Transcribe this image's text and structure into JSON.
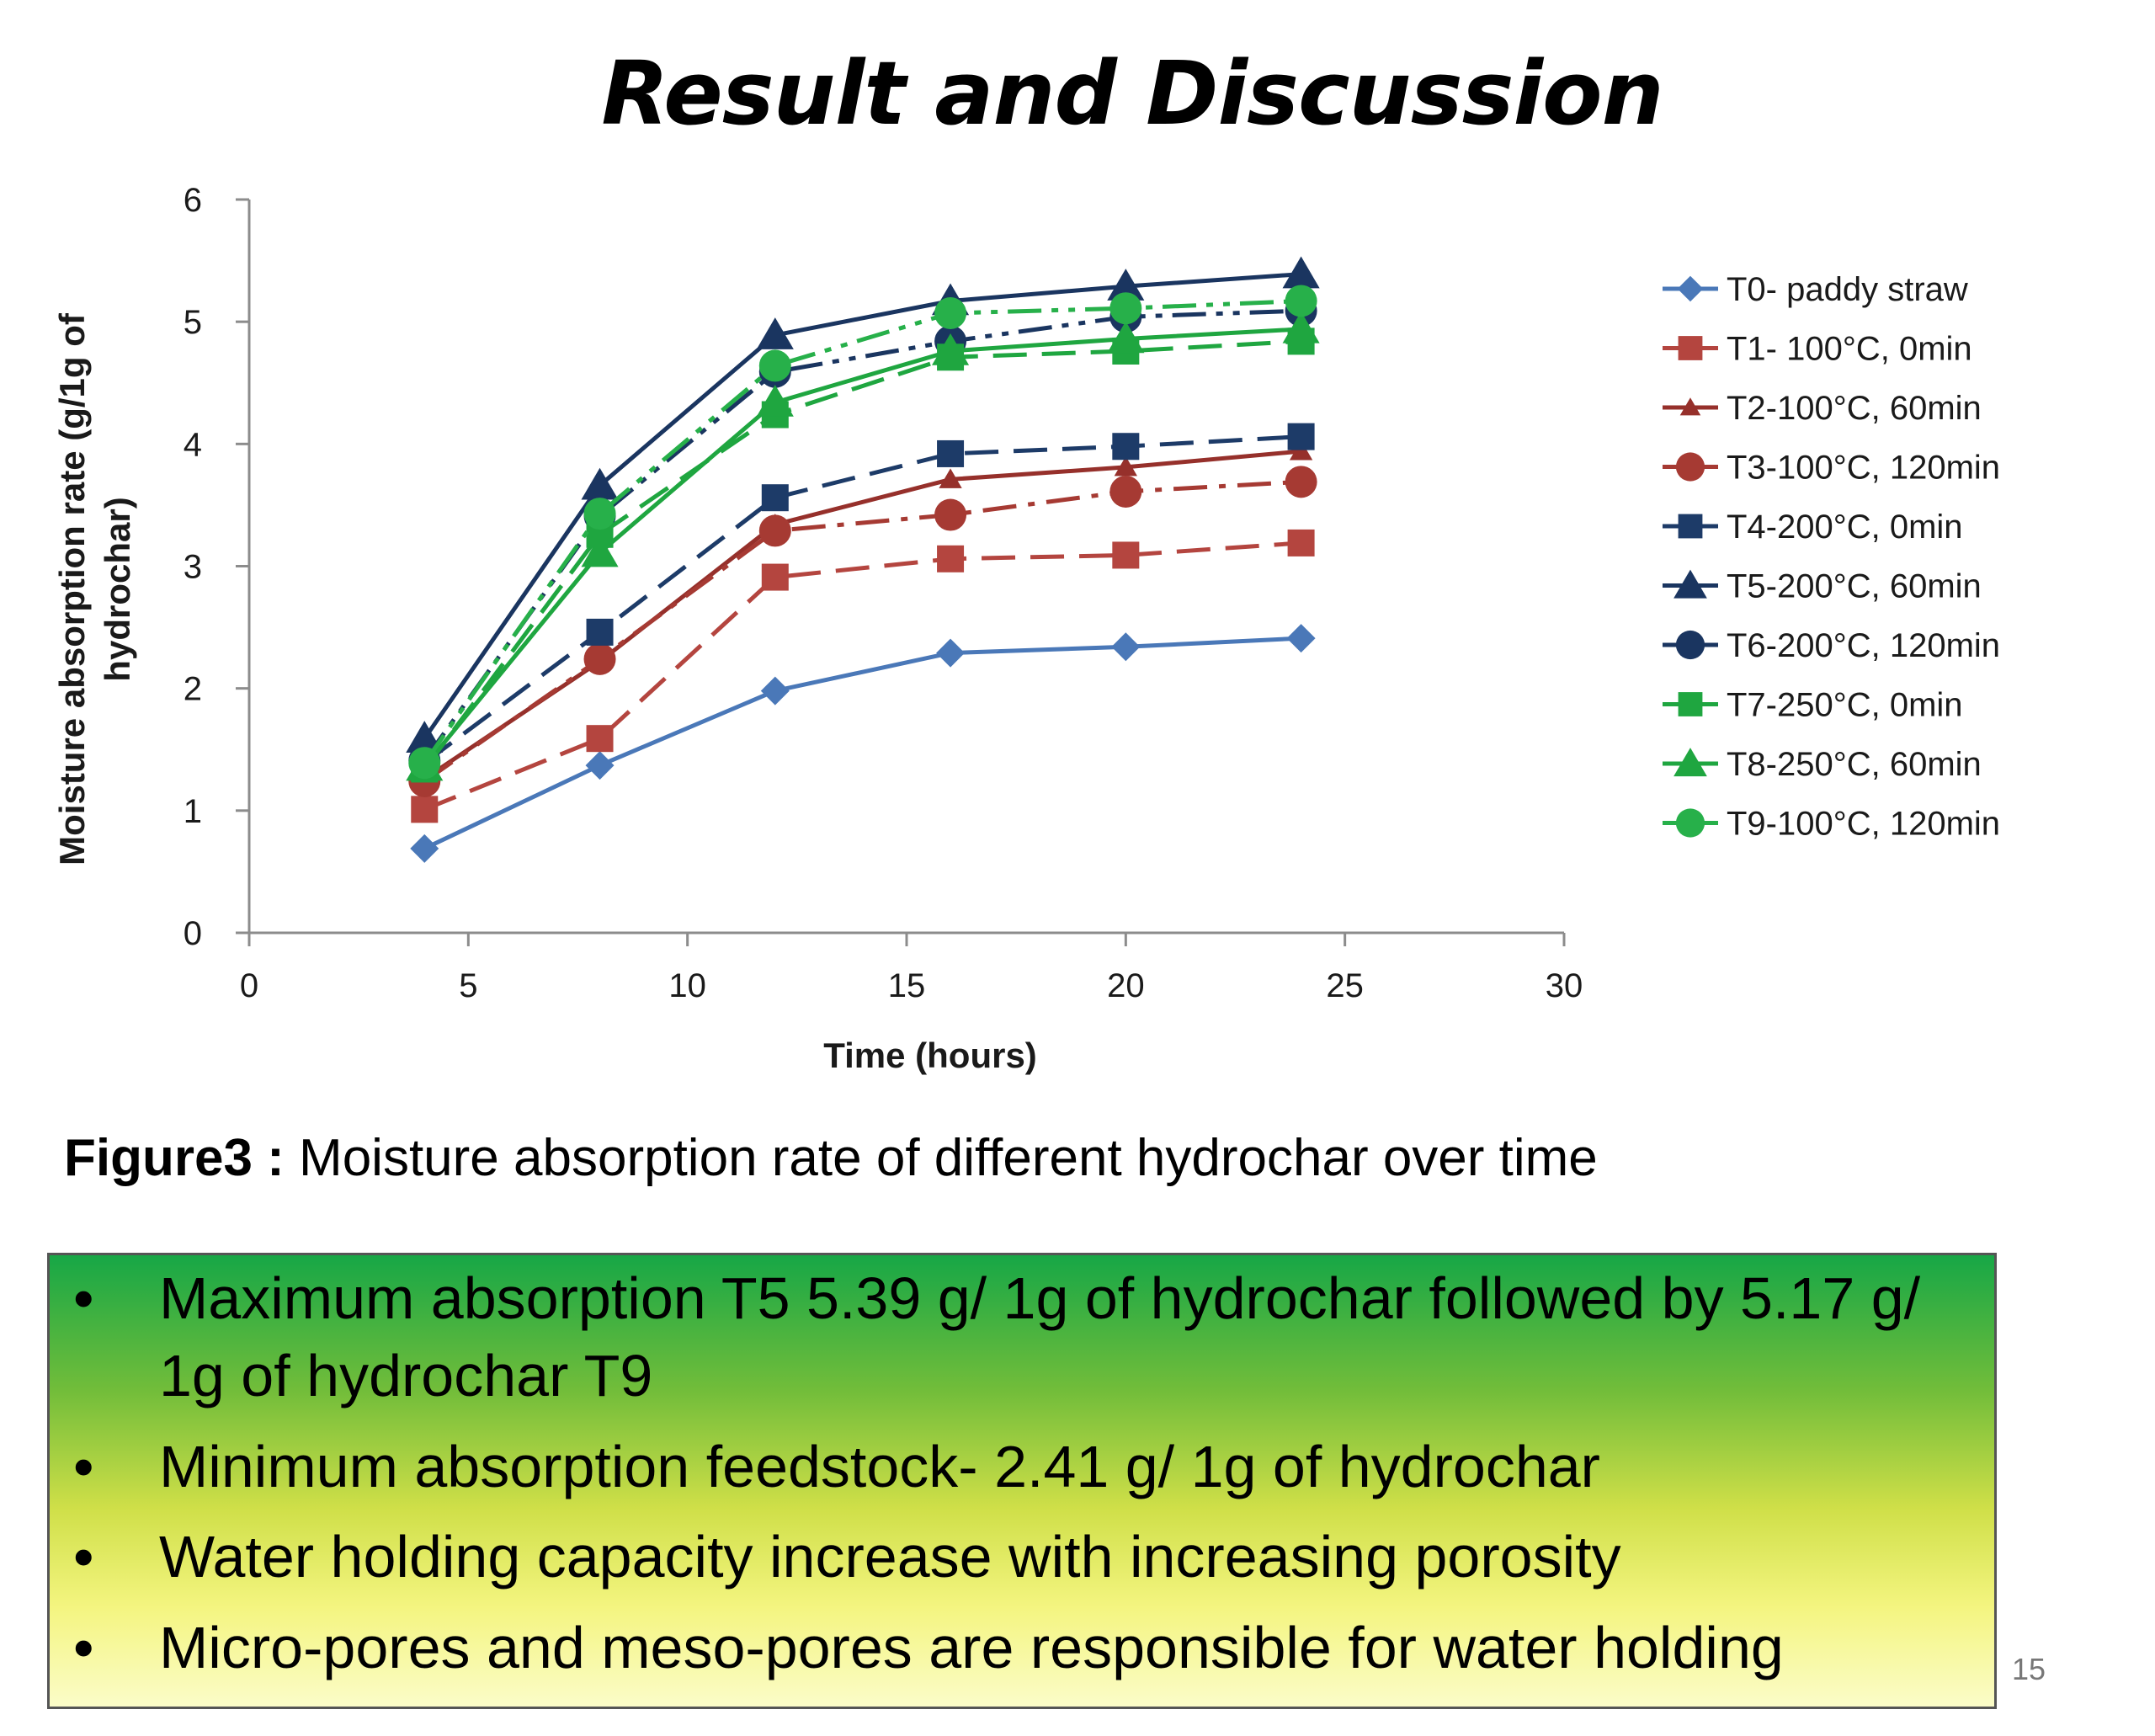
{
  "slide": {
    "title": "Result and Discussion",
    "page_number": "15",
    "caption_label": "Figure3 :",
    "caption_text": "Moisture absorption rate of   different hydrochar over time"
  },
  "takeaways": [
    {
      "bullet": "•",
      "text": "Maximum absorption T5 5.39 g/ 1g of hydrochar followed by 5.17 g/ 1g of hydrochar T9"
    },
    {
      "bullet": "•",
      "text": "Minimum  absorption feedstock- 2.41 g/ 1g of hydrochar"
    },
    {
      "bullet": "•",
      "text": "Water holding capacity increase with increasing porosity"
    },
    {
      "bullet": "•",
      "text": "Micro-pores  and meso-pores are responsible for water holding"
    }
  ],
  "chart_data": {
    "type": "line",
    "title": "",
    "xlabel": "Time (hours)",
    "ylabel_lines": [
      "Moisture absorption rate (g/1g of",
      "hydrochar)"
    ],
    "xlim": [
      0,
      30
    ],
    "ylim": [
      0,
      6
    ],
    "xticks": [
      0,
      5,
      10,
      15,
      20,
      25,
      30
    ],
    "yticks": [
      0,
      1,
      2,
      3,
      4,
      5,
      6
    ],
    "grid": false,
    "legend_position": "right",
    "x": [
      4,
      8,
      12,
      16,
      20,
      24
    ],
    "series": [
      {
        "name": "T0- paddy straw",
        "color": "#4a78b8",
        "marker": "diamond",
        "dash": "solid",
        "values": [
          0.69,
          1.37,
          1.98,
          2.29,
          2.34,
          2.41
        ]
      },
      {
        "name": "T1- 100°C, 0min",
        "color": "#b4453f",
        "marker": "square",
        "dash": "longdash",
        "values": [
          1.01,
          1.59,
          2.91,
          3.06,
          3.09,
          3.19
        ]
      },
      {
        "name": "T2-100°C, 60min",
        "color": "#96302b",
        "marker": "smalltriangle",
        "dash": "solid",
        "values": [
          1.26,
          2.22,
          3.34,
          3.71,
          3.81,
          3.94
        ]
      },
      {
        "name": "T3-100°C, 120min",
        "color": "#a63a33",
        "marker": "circle",
        "dash": "dashdot",
        "values": [
          1.24,
          2.24,
          3.29,
          3.42,
          3.61,
          3.69
        ]
      },
      {
        "name": "T4-200°C, 0min",
        "color": "#1d3b68",
        "marker": "square",
        "dash": "longdash",
        "values": [
          1.39,
          2.46,
          3.56,
          3.92,
          3.98,
          4.06
        ]
      },
      {
        "name": "T5-200°C, 60min",
        "color": "#1a3560",
        "marker": "triangle",
        "dash": "solid",
        "values": [
          1.59,
          3.66,
          4.89,
          5.17,
          5.29,
          5.39
        ]
      },
      {
        "name": "T6-200°C, 120min",
        "color": "#1a3560",
        "marker": "circle",
        "dash": "dashdotdot",
        "values": [
          1.41,
          3.41,
          4.59,
          4.84,
          5.04,
          5.09
        ]
      },
      {
        "name": "T7-250°C, 0min",
        "color": "#1fa640",
        "marker": "square",
        "dash": "longdash",
        "values": [
          1.34,
          3.26,
          4.24,
          4.71,
          4.76,
          4.84
        ]
      },
      {
        "name": "T8-250°C, 60min",
        "color": "#1fa640",
        "marker": "triangle",
        "dash": "solid",
        "values": [
          1.36,
          3.11,
          4.34,
          4.76,
          4.86,
          4.94
        ]
      },
      {
        "name": "T9-100°C, 120min",
        "color": "#27b04a",
        "marker": "circle",
        "dash": "dashdotdot",
        "values": [
          1.39,
          3.43,
          4.64,
          5.07,
          5.11,
          5.17
        ]
      }
    ]
  }
}
